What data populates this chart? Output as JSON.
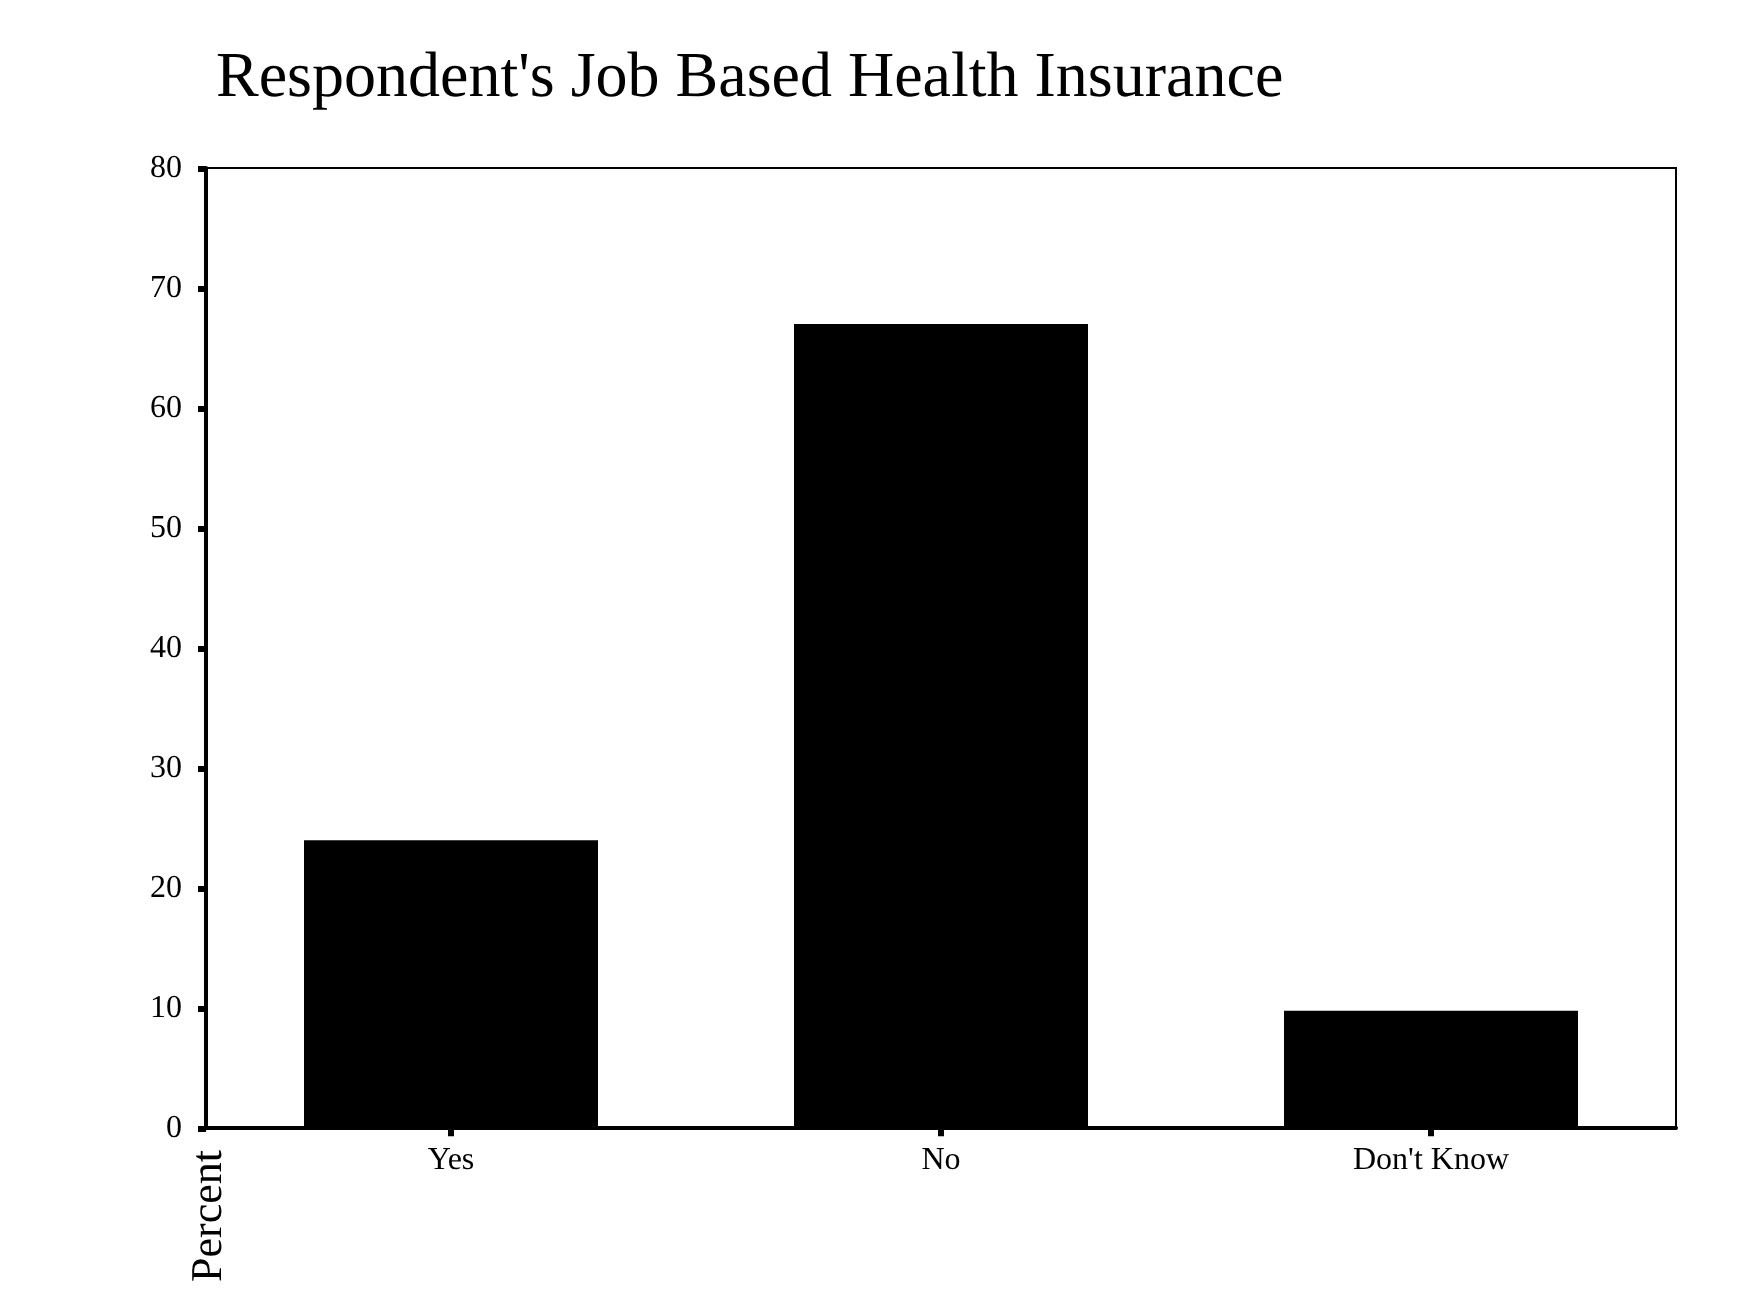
{
  "chart_data": {
    "type": "bar",
    "title": "Respondent's Job Based Health Insurance",
    "ylabel": "Percent",
    "categories": [
      "Yes",
      "No",
      "Don't Know"
    ],
    "values": [
      24.0,
      67.0,
      9.8
    ],
    "color": "#000000",
    "ylim": [
      0,
      80
    ],
    "yticks": [
      0,
      10,
      20,
      30,
      40,
      50,
      60,
      70,
      80
    ],
    "grid": false
  }
}
